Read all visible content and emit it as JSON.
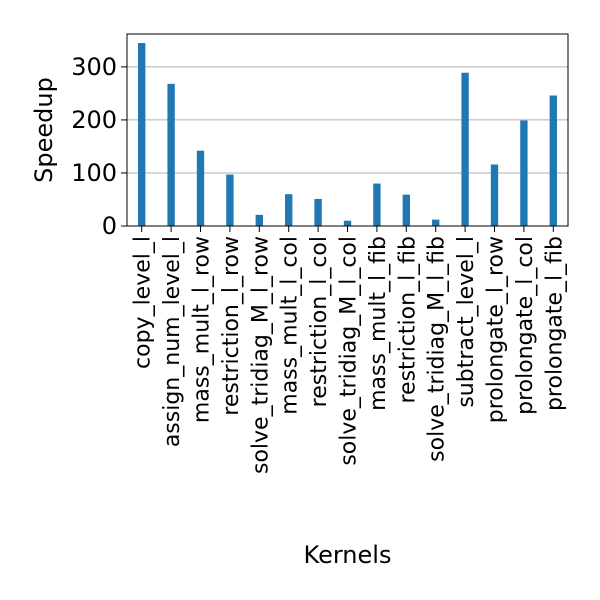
{
  "chart_data": {
    "type": "bar",
    "title": "",
    "xlabel": "Kernels",
    "ylabel": "Speedup",
    "categories": [
      "copy_level_l",
      "assign_num_level_l",
      "mass_mult_l_row",
      "restriction_l_row",
      "solve_tridiag_M_l_row",
      "mass_mult_l_col",
      "restriction_l_col",
      "solve_tridiag_M_l_col",
      "mass_mult_l_fib",
      "restriction_l_fib",
      "solve_tridiag_M_l_fib",
      "subtract_level_l",
      "prolongate_l_row",
      "prolongate_l_col",
      "prolongate_l_fib"
    ],
    "values": [
      345,
      268,
      142,
      97,
      21,
      60,
      51,
      10,
      80,
      59,
      12,
      289,
      116,
      199,
      246
    ],
    "ylim": [
      0,
      362
    ],
    "yticks": [
      0,
      100,
      200,
      300
    ],
    "grid": "horizontal",
    "legend": "none",
    "bar_color": "#1f77b4"
  }
}
